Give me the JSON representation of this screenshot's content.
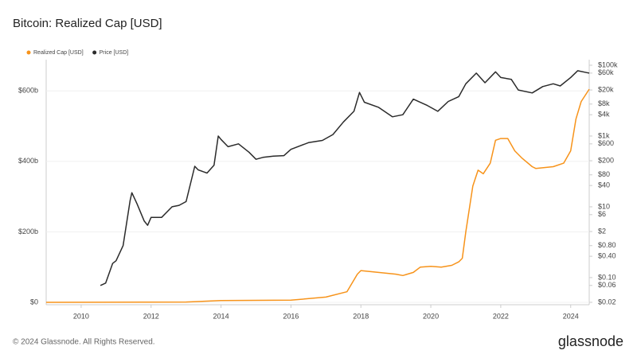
{
  "title": "Bitcoin: Realized Cap [USD]",
  "footer": "© 2024 Glassnode. All Rights Reserved.",
  "brand": "glassnode",
  "chart_data": {
    "type": "line",
    "xlim": [
      2009,
      2024.53
    ],
    "xticks": [
      2010,
      2012,
      2014,
      2016,
      2018,
      2020,
      2022,
      2024
    ],
    "ylim": [
      0,
      700000000000
    ],
    "yticks": [
      {
        "value": 0,
        "label": "$0"
      },
      {
        "value": 200000000000,
        "label": "$200b"
      },
      {
        "value": 400000000000,
        "label": "$400b"
      },
      {
        "value": 600000000000,
        "label": "$600b"
      }
    ],
    "y2lim": [
      0.02,
      100000
    ],
    "y2scale": "log",
    "y2ticks": [
      {
        "value": 100000,
        "label": "$100k"
      },
      {
        "value": 60000,
        "label": "$60k"
      },
      {
        "value": 20000,
        "label": "$20k"
      },
      {
        "value": 8000,
        "label": "$8k"
      },
      {
        "value": 4000,
        "label": "$4k"
      },
      {
        "value": 1000,
        "label": "$1k"
      },
      {
        "value": 600,
        "label": "$600"
      },
      {
        "value": 200,
        "label": "$200"
      },
      {
        "value": 80,
        "label": "$80"
      },
      {
        "value": 40,
        "label": "$40"
      },
      {
        "value": 10,
        "label": "$10"
      },
      {
        "value": 6,
        "label": "$6"
      },
      {
        "value": 2,
        "label": "$2"
      },
      {
        "value": 0.8,
        "label": "$0.80"
      },
      {
        "value": 0.4,
        "label": "$0.40"
      },
      {
        "value": 0.1,
        "label": "$0.10"
      },
      {
        "value": 0.06,
        "label": "$0.06"
      },
      {
        "value": 0.02,
        "label": "$0.02"
      }
    ],
    "grid": true,
    "legend": "top-left",
    "series": [
      {
        "name": "Realized Cap [USD]",
        "color": "#f7931a",
        "x": [
          2009,
          2013,
          2014,
          2016,
          2017,
          2017.6,
          2017.9,
          2018.0,
          2018.5,
          2019.0,
          2019.2,
          2019.5,
          2019.7,
          2020.0,
          2020.3,
          2020.6,
          2020.8,
          2020.9,
          2021.0,
          2021.2,
          2021.35,
          2021.5,
          2021.7,
          2021.85,
          2022.0,
          2022.2,
          2022.4,
          2022.6,
          2022.9,
          2023.0,
          2023.5,
          2023.8,
          2024.0,
          2024.15,
          2024.3,
          2024.53
        ],
        "values": [
          0,
          1000000000,
          5000000000,
          6000000000,
          15000000000,
          30000000000,
          80000000000,
          90000000000,
          85000000000,
          80000000000,
          76000000000,
          85000000000,
          100000000000,
          102000000000,
          100000000000,
          105000000000,
          115000000000,
          125000000000,
          200000000000,
          330000000000,
          375000000000,
          365000000000,
          395000000000,
          460000000000,
          465000000000,
          465000000000,
          430000000000,
          410000000000,
          385000000000,
          380000000000,
          385000000000,
          395000000000,
          430000000000,
          520000000000,
          570000000000,
          605000000000
        ]
      },
      {
        "name": "Price [USD]",
        "color": "#2b2b2b",
        "axis": "y2",
        "x": [
          2010.55,
          2010.7,
          2010.9,
          2011.0,
          2011.2,
          2011.4,
          2011.45,
          2011.6,
          2011.8,
          2011.9,
          2012.0,
          2012.3,
          2012.6,
          2012.8,
          2013.0,
          2013.25,
          2013.35,
          2013.6,
          2013.8,
          2013.92,
          2014.0,
          2014.2,
          2014.5,
          2014.8,
          2015.0,
          2015.2,
          2015.5,
          2015.8,
          2016.0,
          2016.5,
          2016.9,
          2017.2,
          2017.5,
          2017.8,
          2017.96,
          2018.1,
          2018.5,
          2018.9,
          2019.2,
          2019.5,
          2019.9,
          2020.2,
          2020.5,
          2020.8,
          2021.0,
          2021.3,
          2021.55,
          2021.85,
          2022.0,
          2022.3,
          2022.5,
          2022.9,
          2023.2,
          2023.5,
          2023.7,
          2024.0,
          2024.2,
          2024.45,
          2024.53
        ],
        "values": [
          0.06,
          0.07,
          0.25,
          0.3,
          0.8,
          15,
          25,
          12,
          4,
          3,
          5,
          5,
          10,
          11,
          14,
          140,
          110,
          90,
          150,
          1000,
          800,
          500,
          600,
          350,
          220,
          250,
          270,
          280,
          420,
          650,
          750,
          1100,
          2500,
          5000,
          17000,
          9000,
          6500,
          3500,
          4000,
          11000,
          7300,
          5000,
          9500,
          13000,
          30000,
          60000,
          32000,
          65000,
          45000,
          40000,
          20000,
          16500,
          25000,
          30000,
          26000,
          45000,
          70000,
          62000,
          60000
        ]
      }
    ]
  }
}
